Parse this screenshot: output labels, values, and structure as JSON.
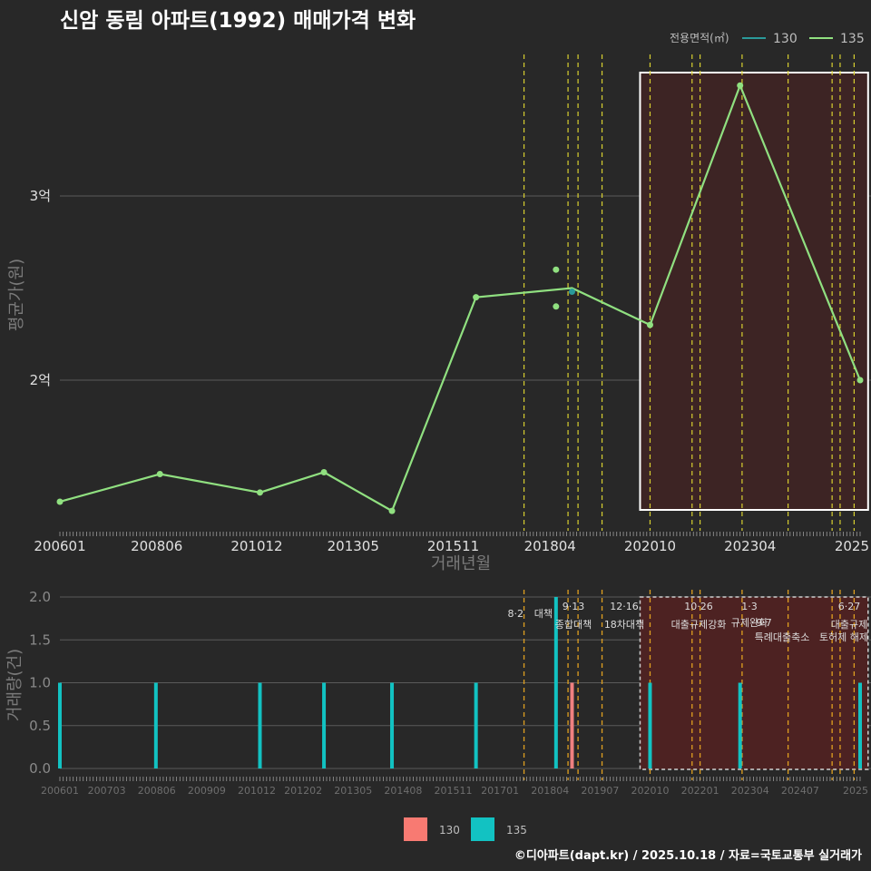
{
  "chart_data": [
    {
      "type": "line",
      "title": "신암 동림 아파트(1992) 매매가격 변화",
      "xlabel": "거래년월",
      "ylabel": "평균가(원)",
      "x_tick_labels": [
        "200601",
        "200806",
        "201012",
        "201305",
        "201511",
        "201804",
        "202010",
        "202304",
        "2025"
      ],
      "y_tick_labels": [
        {
          "label": "3억",
          "value": 3.0
        },
        {
          "label": "2억",
          "value": 2.0
        }
      ],
      "ylim": [
        1.15,
        3.8
      ],
      "legend": {
        "title": "전용면적(㎡)",
        "items": [
          {
            "name": "130",
            "color": "#2a9a9a"
          },
          {
            "name": "135",
            "color": "#90e080"
          }
        ],
        "position": "top-right"
      },
      "series": [
        {
          "name": "135",
          "color": "#90e080",
          "line": [
            {
              "t": 2006.0,
              "v": 1.34
            },
            {
              "t": 2008.5,
              "v": 1.49
            },
            {
              "t": 2011.0,
              "v": 1.39
            },
            {
              "t": 2012.6,
              "v": 1.5
            },
            {
              "t": 2014.3,
              "v": 1.29
            },
            {
              "t": 2016.4,
              "v": 2.45
            },
            {
              "t": 2018.8,
              "v": 2.5
            },
            {
              "t": 2020.75,
              "v": 2.3
            },
            {
              "t": 2023.0,
              "v": 3.6
            },
            {
              "t": 2026.0,
              "v": 2.0
            }
          ],
          "points": [
            {
              "t": 2006.0,
              "v": 1.34
            },
            {
              "t": 2008.5,
              "v": 1.49
            },
            {
              "t": 2011.0,
              "v": 1.39
            },
            {
              "t": 2012.6,
              "v": 1.5
            },
            {
              "t": 2014.3,
              "v": 1.29
            },
            {
              "t": 2016.4,
              "v": 2.45
            },
            {
              "t": 2018.4,
              "v": 2.6
            },
            {
              "t": 2018.4,
              "v": 2.4
            },
            {
              "t": 2020.75,
              "v": 2.3
            },
            {
              "t": 2023.0,
              "v": 3.6
            },
            {
              "t": 2026.0,
              "v": 2.0
            }
          ]
        },
        {
          "name": "130",
          "color": "#2a9a9a",
          "points": [
            {
              "t": 2018.8,
              "v": 2.48
            }
          ]
        }
      ],
      "highlight_region": {
        "from": 2020.75,
        "to": 2025.95
      },
      "policy_lines": [
        2017.6,
        2018.7,
        2018.95,
        2019.55,
        2020.75,
        2021.8,
        2022.0,
        2023.05,
        2024.2,
        2025.3,
        2025.5,
        2025.85
      ]
    },
    {
      "type": "bar",
      "xlabel": "",
      "ylabel": "거래량(건)",
      "x_tick_labels": [
        "200601",
        "200703",
        "200806",
        "200909",
        "201012",
        "201202",
        "201305",
        "201408",
        "201511",
        "201701",
        "201804",
        "201907",
        "202010",
        "202201",
        "202304",
        "202407",
        "2025"
      ],
      "y_tick_labels": [
        "0.0",
        "0.5",
        "1.0",
        "1.5",
        "2.0"
      ],
      "ylim": [
        0,
        2
      ],
      "series": [
        {
          "name": "135",
          "color": "#12c2c2",
          "bars": [
            {
              "t": 2006.0,
              "v": 1
            },
            {
              "t": 2008.4,
              "v": 1
            },
            {
              "t": 2011.0,
              "v": 1
            },
            {
              "t": 2012.6,
              "v": 1
            },
            {
              "t": 2014.3,
              "v": 1
            },
            {
              "t": 2016.4,
              "v": 1
            },
            {
              "t": 2018.4,
              "v": 2
            },
            {
              "t": 2020.75,
              "v": 1
            },
            {
              "t": 2023.0,
              "v": 1
            },
            {
              "t": 2026.0,
              "v": 1
            }
          ]
        },
        {
          "name": "130",
          "color": "#f08080",
          "bars": [
            {
              "t": 2018.8,
              "v": 1
            }
          ]
        }
      ],
      "annotations": [
        {
          "t": 2017.6,
          "date": "8·2",
          "text": "대책"
        },
        {
          "t": 2018.7,
          "date": "9·13",
          "text": "종합대책"
        },
        {
          "t": 2019.95,
          "date": "12·16",
          "text": "18차대책"
        },
        {
          "t": 2022.8,
          "date": "10·26",
          "text": "대출규제강화"
        },
        {
          "t": 2023.5,
          "date": "1·3",
          "text": "규제완화"
        },
        {
          "t": 2024.1,
          "date": "9·7",
          "text": "특례대출축소"
        },
        {
          "t": 2025.1,
          "date": "",
          "text": "토허제 해제"
        },
        {
          "t": 2025.85,
          "date": "6·27",
          "text": "대출규제"
        }
      ],
      "highlight_region": {
        "from": 2020.75,
        "to": 2025.95
      },
      "policy_lines": [
        2017.6,
        2018.7,
        2018.95,
        2019.55,
        2020.75,
        2021.8,
        2022.0,
        2023.05,
        2024.2,
        2025.3,
        2025.5,
        2025.85
      ]
    }
  ],
  "bottom_legend": [
    {
      "name": "130",
      "color": "#f87a72"
    },
    {
      "name": "135",
      "color": "#12c2c2"
    }
  ],
  "caption": "©디아파트(dapt.kr) / 2025.10.18 / 자료=국토교통부 실거래가"
}
